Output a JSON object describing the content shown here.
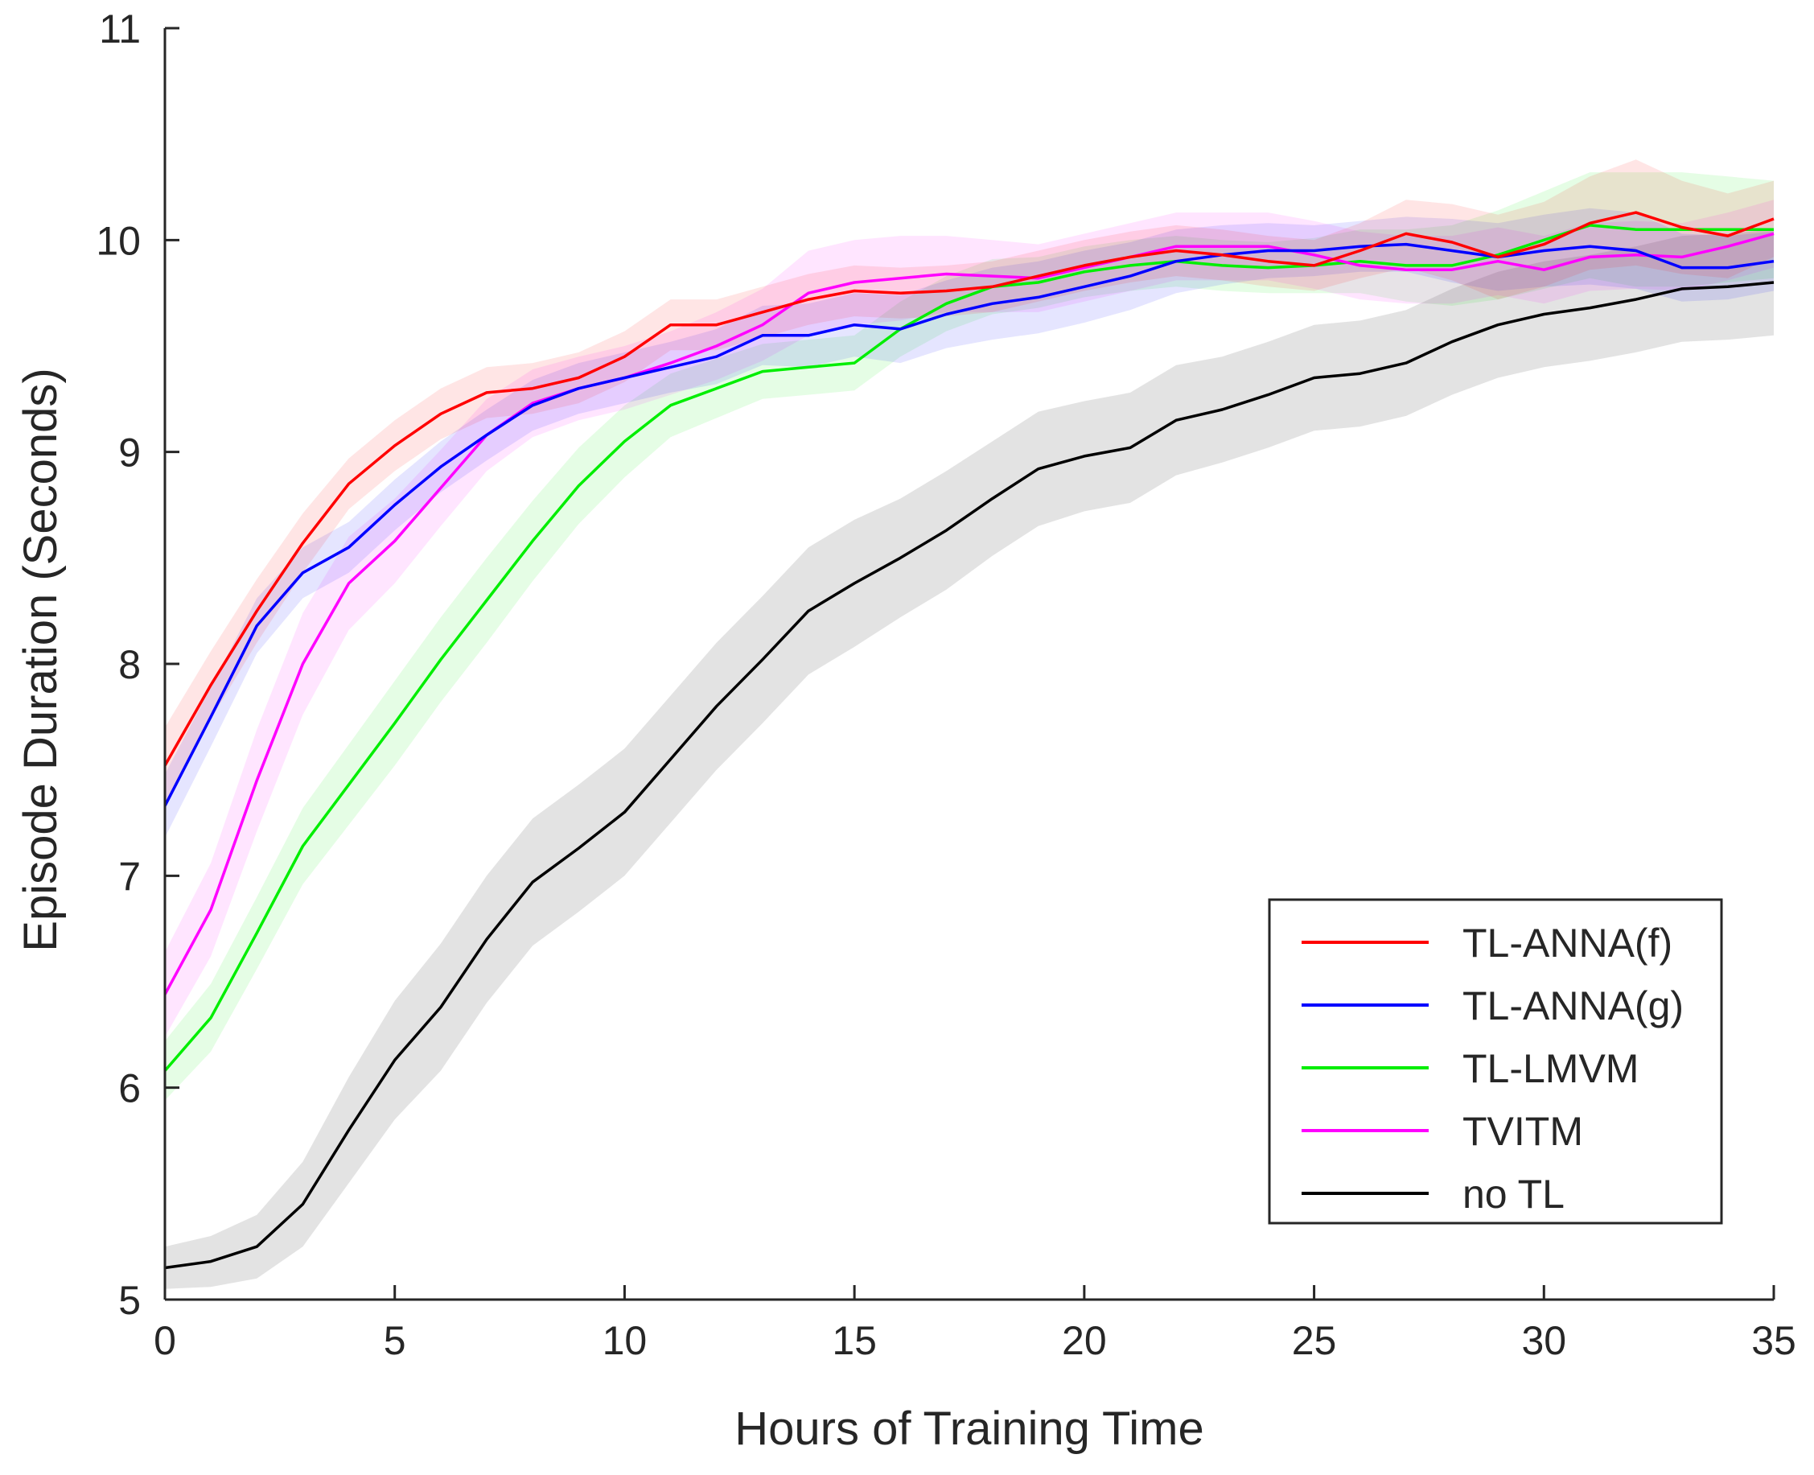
{
  "chart_data": {
    "type": "line",
    "title": "",
    "xlabel": "Hours of Training Time",
    "ylabel": "Episode Duration (Seconds)",
    "xlim": [
      0,
      35
    ],
    "ylim": [
      5,
      11
    ],
    "xticks": [
      0,
      5,
      10,
      15,
      20,
      25,
      30,
      35
    ],
    "yticks": [
      5,
      6,
      7,
      8,
      9,
      10,
      11
    ],
    "grid": false,
    "legend_position": "bottom-right",
    "x": [
      0,
      1,
      2,
      3,
      4,
      5,
      6,
      7,
      8,
      9,
      10,
      11,
      12,
      13,
      14,
      15,
      16,
      17,
      18,
      19,
      20,
      21,
      22,
      23,
      24,
      25,
      26,
      27,
      28,
      29,
      30,
      31,
      32,
      33,
      34,
      35
    ],
    "series": [
      {
        "name": "TL-ANNA(f)",
        "color": "#ff0000",
        "values": [
          7.52,
          7.9,
          8.25,
          8.57,
          8.85,
          9.03,
          9.18,
          9.28,
          9.3,
          9.35,
          9.45,
          9.6,
          9.6,
          9.66,
          9.72,
          9.76,
          9.75,
          9.76,
          9.78,
          9.83,
          9.88,
          9.92,
          9.95,
          9.93,
          9.9,
          9.88,
          9.95,
          10.03,
          9.99,
          9.92,
          9.98,
          10.08,
          10.13,
          10.06,
          10.02,
          10.1
        ],
        "band": [
          0.18,
          0.16,
          0.15,
          0.14,
          0.12,
          0.12,
          0.12,
          0.12,
          0.12,
          0.12,
          0.12,
          0.12,
          0.12,
          0.12,
          0.12,
          0.12,
          0.12,
          0.12,
          0.12,
          0.12,
          0.12,
          0.12,
          0.12,
          0.12,
          0.12,
          0.12,
          0.13,
          0.16,
          0.18,
          0.2,
          0.2,
          0.22,
          0.25,
          0.22,
          0.2,
          0.18
        ]
      },
      {
        "name": "TL-ANNA(g)",
        "color": "#0000ff",
        "values": [
          7.33,
          7.75,
          8.18,
          8.43,
          8.55,
          8.75,
          8.93,
          9.08,
          9.22,
          9.3,
          9.35,
          9.4,
          9.45,
          9.55,
          9.55,
          9.6,
          9.58,
          9.65,
          9.7,
          9.73,
          9.78,
          9.83,
          9.9,
          9.93,
          9.95,
          9.95,
          9.97,
          9.98,
          9.95,
          9.92,
          9.95,
          9.97,
          9.95,
          9.87,
          9.87,
          9.9
        ],
        "band": [
          0.15,
          0.14,
          0.13,
          0.12,
          0.12,
          0.12,
          0.12,
          0.12,
          0.12,
          0.12,
          0.12,
          0.12,
          0.13,
          0.14,
          0.15,
          0.15,
          0.16,
          0.16,
          0.17,
          0.17,
          0.17,
          0.16,
          0.15,
          0.14,
          0.13,
          0.12,
          0.12,
          0.13,
          0.15,
          0.16,
          0.17,
          0.18,
          0.18,
          0.16,
          0.15,
          0.14
        ]
      },
      {
        "name": "TL-LMVM",
        "color": "#00ee00",
        "values": [
          6.08,
          6.33,
          6.73,
          7.14,
          7.43,
          7.72,
          8.02,
          8.3,
          8.58,
          8.84,
          9.05,
          9.22,
          9.3,
          9.38,
          9.4,
          9.42,
          9.58,
          9.7,
          9.78,
          9.8,
          9.85,
          9.88,
          9.9,
          9.88,
          9.87,
          9.88,
          9.9,
          9.88,
          9.88,
          9.93,
          10.0,
          10.07,
          10.05,
          10.05,
          10.05,
          10.05
        ],
        "band": [
          0.14,
          0.16,
          0.17,
          0.18,
          0.19,
          0.2,
          0.2,
          0.2,
          0.19,
          0.18,
          0.17,
          0.15,
          0.14,
          0.13,
          0.13,
          0.13,
          0.13,
          0.13,
          0.13,
          0.12,
          0.12,
          0.12,
          0.12,
          0.12,
          0.12,
          0.13,
          0.15,
          0.17,
          0.19,
          0.21,
          0.23,
          0.25,
          0.27,
          0.27,
          0.25,
          0.23
        ]
      },
      {
        "name": "TVITM",
        "color": "#ff00ff",
        "values": [
          6.44,
          6.84,
          7.45,
          8.0,
          8.38,
          8.58,
          8.83,
          9.08,
          9.23,
          9.3,
          9.35,
          9.42,
          9.5,
          9.6,
          9.75,
          9.8,
          9.82,
          9.84,
          9.83,
          9.82,
          9.87,
          9.92,
          9.97,
          9.97,
          9.97,
          9.93,
          9.88,
          9.86,
          9.86,
          9.9,
          9.86,
          9.92,
          9.93,
          9.92,
          9.97,
          10.03
        ],
        "band": [
          0.2,
          0.22,
          0.24,
          0.24,
          0.22,
          0.2,
          0.18,
          0.17,
          0.16,
          0.15,
          0.15,
          0.15,
          0.16,
          0.17,
          0.2,
          0.2,
          0.2,
          0.18,
          0.17,
          0.16,
          0.16,
          0.16,
          0.16,
          0.16,
          0.16,
          0.16,
          0.16,
          0.16,
          0.16,
          0.16,
          0.16,
          0.16,
          0.16,
          0.16,
          0.16,
          0.16
        ]
      },
      {
        "name": "no TL",
        "color": "#000000",
        "values": [
          5.15,
          5.18,
          5.25,
          5.45,
          5.8,
          6.13,
          6.38,
          6.7,
          6.97,
          7.13,
          7.3,
          7.55,
          7.8,
          8.02,
          8.25,
          8.38,
          8.5,
          8.63,
          8.78,
          8.92,
          8.98,
          9.02,
          9.15,
          9.2,
          9.27,
          9.35,
          9.37,
          9.42,
          9.52,
          9.6,
          9.65,
          9.68,
          9.72,
          9.77,
          9.78,
          9.8
        ],
        "band": [
          0.1,
          0.12,
          0.15,
          0.2,
          0.25,
          0.28,
          0.3,
          0.3,
          0.3,
          0.3,
          0.3,
          0.3,
          0.3,
          0.3,
          0.3,
          0.3,
          0.28,
          0.28,
          0.27,
          0.27,
          0.26,
          0.26,
          0.26,
          0.25,
          0.25,
          0.25,
          0.25,
          0.25,
          0.25,
          0.25,
          0.25,
          0.25,
          0.25,
          0.25,
          0.25,
          0.25
        ]
      }
    ]
  }
}
